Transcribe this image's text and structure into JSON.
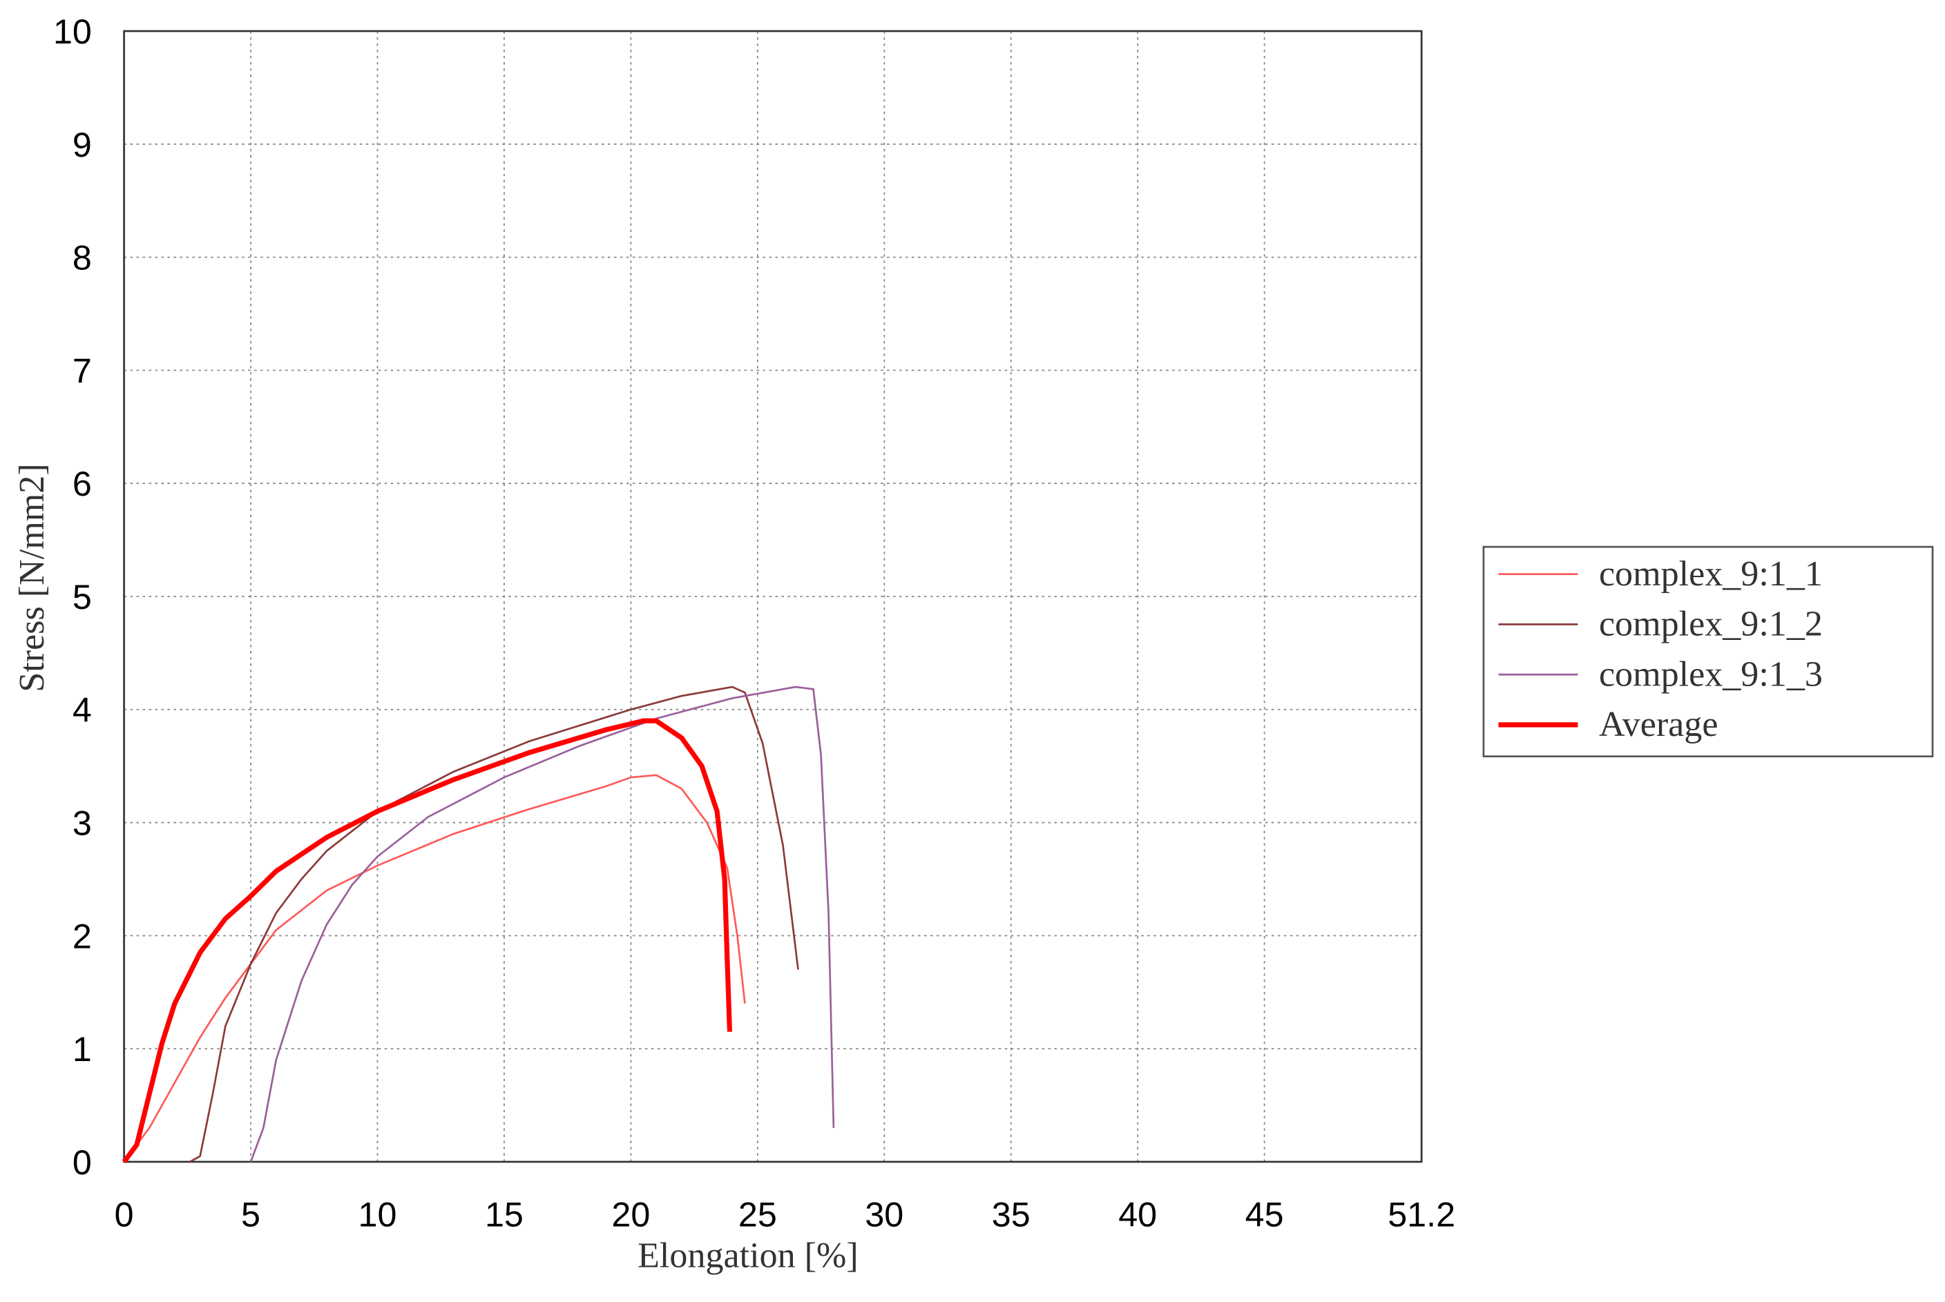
{
  "chart_data": {
    "type": "line",
    "x_label": "Elongation [%]",
    "y_label": "Stress [N/mm2]",
    "xlim": [
      0,
      51.2
    ],
    "ylim": [
      0,
      10
    ],
    "xticks": [
      0,
      5,
      10,
      15,
      20,
      25,
      30,
      35,
      40,
      45,
      51.2
    ],
    "yticks": [
      0,
      1,
      2,
      3,
      4,
      5,
      6,
      7,
      8,
      9,
      10
    ],
    "grid": true,
    "legend": "right",
    "series": [
      {
        "name": "complex_9:1_1",
        "color": "#ff5a5a",
        "width": 1.5,
        "x": [
          0,
          1,
          2,
          3,
          4,
          5,
          6,
          8,
          10,
          13,
          16,
          19,
          20,
          21,
          22,
          23,
          23.8,
          24.2,
          24.5
        ],
        "values": [
          0,
          0.3,
          0.7,
          1.1,
          1.45,
          1.75,
          2.05,
          2.4,
          2.62,
          2.9,
          3.12,
          3.32,
          3.4,
          3.42,
          3.3,
          3.0,
          2.6,
          2.0,
          1.4
        ]
      },
      {
        "name": "complex_9:1_2",
        "color": "#8b3a3a",
        "width": 1.5,
        "x": [
          2.6,
          3,
          3.5,
          4,
          5,
          6,
          7,
          8,
          10,
          13,
          16,
          20,
          22,
          24,
          24.5,
          25.2,
          26,
          26.6
        ],
        "values": [
          0,
          0.05,
          0.6,
          1.2,
          1.75,
          2.2,
          2.5,
          2.75,
          3.1,
          3.45,
          3.72,
          4.0,
          4.12,
          4.2,
          4.15,
          3.7,
          2.8,
          1.7
        ]
      },
      {
        "name": "complex_9:1_3",
        "color": "#9b5f9b",
        "width": 1.5,
        "x": [
          5,
          5.5,
          6,
          7,
          8,
          9,
          10,
          12,
          15,
          18,
          21,
          24,
          26.5,
          27.2,
          27.5,
          27.8,
          28
        ],
        "values": [
          0,
          0.3,
          0.9,
          1.6,
          2.1,
          2.45,
          2.7,
          3.05,
          3.4,
          3.68,
          3.92,
          4.1,
          4.2,
          4.18,
          3.6,
          2.2,
          0.3
        ]
      },
      {
        "name": "Average",
        "color": "#ff0000",
        "width": 4,
        "x": [
          0,
          0.5,
          1,
          1.5,
          2,
          3,
          4,
          5,
          6,
          7,
          8,
          10,
          13,
          16,
          19,
          20.5,
          21,
          22,
          22.8,
          23.4,
          23.7,
          23.8,
          23.9
        ],
        "values": [
          0,
          0.15,
          0.6,
          1.05,
          1.4,
          1.85,
          2.15,
          2.35,
          2.57,
          2.72,
          2.87,
          3.1,
          3.38,
          3.62,
          3.82,
          3.9,
          3.9,
          3.75,
          3.5,
          3.1,
          2.5,
          1.8,
          1.15
        ]
      }
    ]
  }
}
